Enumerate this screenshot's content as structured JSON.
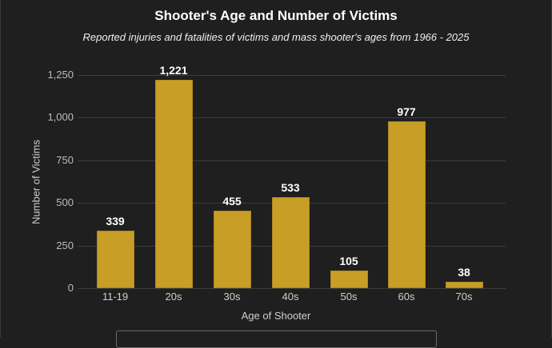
{
  "chart_data": {
    "type": "bar",
    "title": "Shooter's Age and Number of Victims",
    "subtitle": "Reported injuries and fatalities of victims and mass shooter's ages from 1966 - 2025",
    "xlabel": "Age of Shooter",
    "ylabel": "Number of Victims",
    "categories": [
      "11-19",
      "20s",
      "30s",
      "40s",
      "50s",
      "60s",
      "70s"
    ],
    "values": [
      339,
      1221,
      455,
      533,
      105,
      977,
      38
    ],
    "value_labels": [
      "339",
      "1,221",
      "455",
      "533",
      "105",
      "977",
      "38"
    ],
    "yticks": [
      0,
      250,
      500,
      750,
      1000,
      1250
    ],
    "ytick_labels": [
      "0",
      "250",
      "500",
      "750",
      "1,000",
      "1,250"
    ],
    "ylim": [
      0,
      1250
    ],
    "grid": true,
    "bar_color": "#c99e27",
    "background": "#1f1f1f"
  }
}
